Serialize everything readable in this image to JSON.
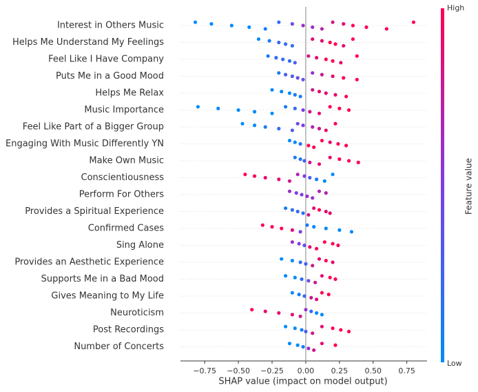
{
  "chart_data": {
    "type": "beeswarm",
    "xlabel": "SHAP value (impact on model output)",
    "xlim": [
      -0.93,
      0.9
    ],
    "xticks": [
      {
        "value": -0.75,
        "label": "−0.75"
      },
      {
        "value": -0.5,
        "label": "−0.50"
      },
      {
        "value": -0.25,
        "label": "−0.25"
      },
      {
        "value": 0,
        "label": "0.00"
      },
      0.25,
      {
        "value": 0.5,
        "label": "0.50"
      },
      0.75
    ],
    "grid": true,
    "colormap": [
      "#008bfb",
      "#7e3de6",
      "#ff0052"
    ],
    "colorbar": {
      "title": "Feature value",
      "high_label": "High",
      "low_label": "Low"
    },
    "series": [
      {
        "name": "Interest in Others Music",
        "values": [
          -0.82,
          -0.7,
          -0.55,
          -0.42,
          -0.3,
          -0.2,
          -0.1,
          -0.02,
          0.05,
          0.12,
          0.2,
          0.28,
          0.35,
          0.45,
          0.6,
          0.8
        ],
        "levels": [
          0,
          0,
          0,
          0,
          0.1,
          0.2,
          0.4,
          0.6,
          0.6,
          0.7,
          0.8,
          0.9,
          1,
          1,
          1,
          1
        ]
      },
      {
        "name": "Helps Me Understand My Feelings",
        "values": [
          -0.35,
          -0.27,
          -0.2,
          -0.15,
          -0.1,
          0.05,
          0.12,
          0.18,
          0.22,
          0.28,
          0.35
        ],
        "levels": [
          0,
          0.1,
          0.2,
          0.2,
          0.2,
          0.9,
          0.9,
          1,
          1,
          0.9,
          1
        ]
      },
      {
        "name": "Feel Like I Have Company",
        "values": [
          -0.28,
          -0.22,
          -0.17,
          -0.12,
          -0.08,
          0.02,
          0.08,
          0.15,
          0.2,
          0.26,
          0.38
        ],
        "levels": [
          0.1,
          0.2,
          0.2,
          0.2,
          0.3,
          0.8,
          0.9,
          1,
          1,
          0.9,
          1
        ]
      },
      {
        "name": "Puts Me in a Good Mood",
        "values": [
          -0.2,
          -0.15,
          -0.1,
          -0.06,
          -0.02,
          0.05,
          0.12,
          0.2,
          0.28,
          0.38
        ],
        "levels": [
          0.1,
          0.3,
          0.3,
          0.4,
          0.4,
          0.6,
          0.8,
          0.9,
          1,
          1
        ]
      },
      {
        "name": "Helps Me Relax",
        "values": [
          -0.25,
          -0.18,
          -0.12,
          -0.08,
          -0.04,
          0.05,
          0.1,
          0.15,
          0.22,
          0.3
        ],
        "levels": [
          0,
          0,
          0,
          0.1,
          0.1,
          0.8,
          0.9,
          0.9,
          0.9,
          1
        ]
      },
      {
        "name": "Music Importance",
        "values": [
          -0.8,
          -0.65,
          -0.5,
          -0.38,
          -0.25,
          -0.15,
          -0.08,
          -0.02,
          0.03,
          0.1,
          0.18,
          0.25,
          0.32
        ],
        "levels": [
          0,
          0,
          0,
          0,
          0,
          0.1,
          0.2,
          0.5,
          0.8,
          0.9,
          1,
          1,
          1
        ]
      },
      {
        "name": "Feel Like Part of a Bigger Group",
        "values": [
          -0.47,
          -0.38,
          -0.3,
          -0.2,
          -0.1,
          -0.06,
          -0.02,
          0.05,
          0.1,
          0.15,
          0.22
        ],
        "levels": [
          0,
          0,
          0.1,
          0.2,
          0.3,
          0.4,
          0.5,
          0.7,
          0.8,
          0.9,
          1
        ]
      },
      {
        "name": "Engaging With Music Differently YN",
        "values": [
          -0.12,
          -0.08,
          -0.04,
          0.02,
          0.06,
          0.12,
          0.18,
          0.24,
          0.3
        ],
        "levels": [
          0,
          0,
          0.1,
          1,
          1,
          1,
          0.9,
          1,
          1
        ]
      },
      {
        "name": "Make Own Music",
        "values": [
          -0.08,
          -0.04,
          -0.01,
          0.03,
          0.1,
          0.18,
          0.25,
          0.32,
          0.39
        ],
        "levels": [
          0.1,
          0.1,
          0.3,
          0.8,
          0.9,
          0.9,
          1,
          1,
          1
        ]
      },
      {
        "name": "Conscientiousness",
        "values": [
          -0.45,
          -0.38,
          -0.3,
          -0.2,
          -0.12,
          -0.06,
          -0.01,
          0.03,
          0.08,
          0.14,
          0.2
        ],
        "levels": [
          1,
          1,
          0.9,
          0.9,
          0.8,
          0.7,
          0.5,
          0.3,
          0.1,
          0,
          0
        ]
      },
      {
        "name": "Perform For Others",
        "values": [
          -0.12,
          -0.07,
          -0.03,
          0.01,
          0.05,
          0.1,
          0.15
        ],
        "levels": [
          0.6,
          0.5,
          0.5,
          0.6,
          0.6,
          0.7,
          0.7
        ]
      },
      {
        "name": "Provides a Spiritual Experience",
        "values": [
          -0.15,
          -0.1,
          -0.06,
          -0.02,
          0.02,
          0.06,
          0.1,
          0.15,
          0.18
        ],
        "levels": [
          0.1,
          0.2,
          0.2,
          0.2,
          0.8,
          0.9,
          1,
          0.9,
          0.9
        ]
      },
      {
        "name": "Confirmed Cases",
        "values": [
          -0.32,
          -0.25,
          -0.18,
          -0.1,
          -0.04,
          0.01,
          0.06,
          0.15,
          0.25,
          0.34
        ],
        "levels": [
          1,
          1,
          1,
          0.9,
          0.5,
          0.1,
          0,
          0,
          0,
          0
        ]
      },
      {
        "name": "Sing Alone",
        "values": [
          -0.1,
          -0.05,
          -0.01,
          0.03,
          0.08,
          0.14,
          0.2,
          0.24
        ],
        "levels": [
          0.6,
          0.5,
          0.4,
          0.9,
          1,
          1,
          1,
          1
        ]
      },
      {
        "name": "Provides an Aesthetic Experience",
        "values": [
          -0.18,
          -0.1,
          -0.04,
          0,
          0.05,
          0.1,
          0.15,
          0.2
        ],
        "levels": [
          0,
          0,
          0.2,
          0.3,
          0.8,
          0.9,
          1,
          0.9
        ]
      },
      {
        "name": "Supports Me in a Bad Mood",
        "values": [
          -0.15,
          -0.08,
          -0.03,
          0.02,
          0.07,
          0.12,
          0.18,
          0.22
        ],
        "levels": [
          0,
          0,
          0.2,
          0.4,
          0.8,
          0.9,
          1,
          1
        ]
      },
      {
        "name": "Gives Meaning to My Life",
        "values": [
          -0.1,
          -0.05,
          -0.01,
          0.04,
          0.08,
          0.12,
          0.17
        ],
        "levels": [
          0,
          0.1,
          0.2,
          0.8,
          0.9,
          1,
          1
        ]
      },
      {
        "name": "Neuroticism",
        "values": [
          -0.4,
          -0.3,
          -0.2,
          -0.1,
          -0.04,
          0,
          0.04,
          0.08,
          0.12
        ],
        "levels": [
          1,
          0.9,
          0.9,
          0.9,
          0.8,
          0.6,
          0.2,
          0,
          0
        ]
      },
      {
        "name": "Post Recordings",
        "values": [
          -0.15,
          -0.08,
          -0.03,
          0,
          0.05,
          0.12,
          0.2,
          0.26,
          0.32
        ],
        "levels": [
          0,
          0,
          0.1,
          0.3,
          0.8,
          0.9,
          1,
          1,
          1
        ]
      },
      {
        "name": "Number of Concerts",
        "values": [
          -0.12,
          -0.06,
          -0.02,
          0.02,
          0.06,
          0.12,
          0.22
        ],
        "levels": [
          0,
          0,
          0.1,
          0.6,
          0.8,
          0.9,
          1
        ]
      }
    ]
  }
}
